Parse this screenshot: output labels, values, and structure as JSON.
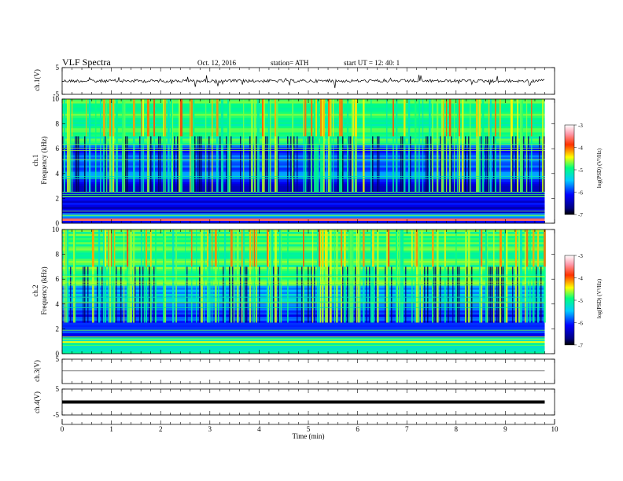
{
  "header": {
    "title": "VLF  Spectra",
    "date": "Oct. 12, 2016",
    "station": "station= ATH",
    "start": "start  UT  =    12: 40: 1"
  },
  "chart_data": [
    {
      "type": "line",
      "panel": "ch1-waveform",
      "ylabel": "ch.1(V)",
      "ylim": [
        -5,
        5
      ],
      "yticks": [
        "5",
        "-5"
      ],
      "level": 0,
      "series_color": "#000000"
    },
    {
      "type": "heatmap",
      "panel": "ch1-spectrogram",
      "ylabel_channel": "ch.1",
      "ylabel": "Frequency  (kHz)",
      "ylim": [
        0,
        10
      ],
      "yticks": [
        "0",
        "2",
        "4",
        "6",
        "8",
        "10"
      ],
      "colorbar": {
        "label": "log(PSD) (V²/Hz)",
        "range": [
          -7,
          -3
        ],
        "ticks": [
          "-3",
          "-4",
          "-5",
          "-6",
          "-7"
        ]
      }
    },
    {
      "type": "heatmap",
      "panel": "ch2-spectrogram",
      "ylabel_channel": "ch.2",
      "ylabel": "Frequency  (kHz)",
      "ylim": [
        0,
        10
      ],
      "yticks": [
        "0",
        "2",
        "4",
        "6",
        "8",
        "10"
      ],
      "colorbar": {
        "label": "log(PSD) (V²/Hz)",
        "range": [
          -7,
          -3
        ],
        "ticks": [
          "-3",
          "-4",
          "-5",
          "-6",
          "-7"
        ]
      }
    },
    {
      "type": "line",
      "panel": "ch3-waveform",
      "ylabel": "ch.3(V)",
      "ylim": [
        -5,
        5
      ],
      "yticks": [
        "5"
      ],
      "level": 0.2
    },
    {
      "type": "line",
      "panel": "ch4-waveform",
      "ylabel": "ch.4(V)",
      "ylim": [
        -5,
        5
      ],
      "yticks": [
        "5",
        "-5"
      ],
      "level": 0
    }
  ],
  "time_axis": {
    "xlabel": "Time  (min)",
    "xlim": [
      0,
      10
    ],
    "ticks": [
      "0",
      "1",
      "2",
      "3",
      "4",
      "5",
      "6",
      "7",
      "8",
      "9",
      "10"
    ],
    "data_end": 9.8
  }
}
